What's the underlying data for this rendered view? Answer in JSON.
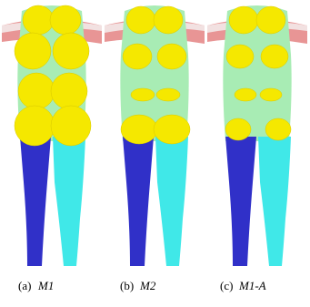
{
  "figures": [
    {
      "label": "(a)",
      "name": "M1"
    },
    {
      "label": "(b)",
      "name": "M2"
    },
    {
      "label": "(c)",
      "name": "M1-A"
    }
  ]
}
